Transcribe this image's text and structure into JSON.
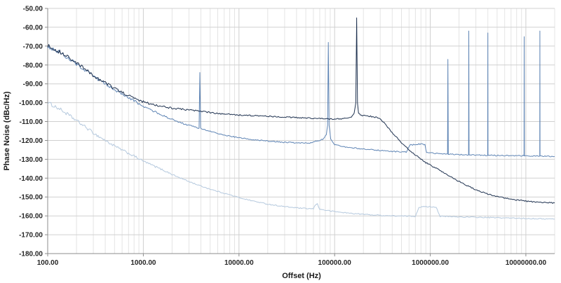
{
  "colors": {
    "background": "#ffffff",
    "grid_major": "#d0d0d0",
    "grid_minor": "#e4e4e4",
    "axis": "#8c8c8c",
    "tick_text": "#262626"
  },
  "chart_data": {
    "type": "line",
    "title": "",
    "xlabel": "Offset (Hz)",
    "ylabel": "Phase Noise (dBc/Hz)",
    "x_scale": "log",
    "x_range": [
      100,
      20000000
    ],
    "y_range": [
      -180,
      -50
    ],
    "grid": true,
    "legend": "none",
    "y_ticks": [
      "-50.00",
      "-60.00",
      "-70.00",
      "-80.00",
      "-90.00",
      "-100.00",
      "-110.00",
      "-120.00",
      "-130.00",
      "-140.00",
      "-150.00",
      "-160.00",
      "-170.00",
      "-180.00"
    ],
    "x_ticks": [
      {
        "value": 100,
        "label": "100.00"
      },
      {
        "value": 1000,
        "label": "1000.00"
      },
      {
        "value": 10000,
        "label": "10000.00"
      },
      {
        "value": 100000,
        "label": "100000.00"
      },
      {
        "value": 1000000,
        "label": "1000000.00"
      },
      {
        "value": 10000000,
        "label": "10000000.00"
      }
    ],
    "series": [
      {
        "id": "trace-light-blue",
        "color": "#b5c9de",
        "noise_db": 1.0,
        "points": [
          [
            100,
            -100
          ],
          [
            130,
            -103
          ],
          [
            160,
            -106
          ],
          [
            200,
            -109.5
          ],
          [
            250,
            -113
          ],
          [
            320,
            -117
          ],
          [
            400,
            -120
          ],
          [
            500,
            -123
          ],
          [
            650,
            -126
          ],
          [
            800,
            -128.3
          ],
          [
            1000,
            -131
          ],
          [
            1300,
            -133.6
          ],
          [
            1700,
            -136.3
          ],
          [
            2200,
            -139
          ],
          [
            3000,
            -141.8
          ],
          [
            4000,
            -144.2
          ],
          [
            5500,
            -146.5
          ],
          [
            7500,
            -148.4
          ],
          [
            10000,
            -150.3
          ],
          [
            14000,
            -152.1
          ],
          [
            20000,
            -153.8
          ],
          [
            30000,
            -155.1
          ],
          [
            45000,
            -156
          ],
          [
            60000,
            -156.3
          ],
          [
            63000,
            -154.1
          ],
          [
            66000,
            -153.7
          ],
          [
            70000,
            -156.5
          ],
          [
            90000,
            -157.4
          ],
          [
            120000,
            -158.2
          ],
          [
            170000,
            -158.9
          ],
          [
            250000,
            -159.5
          ],
          [
            350000,
            -159.9
          ],
          [
            500000,
            -160.1
          ],
          [
            700000,
            -160.2
          ],
          [
            760000,
            -155.4
          ],
          [
            900000,
            -155.1
          ],
          [
            1150000,
            -155.3
          ],
          [
            1270000,
            -160.3
          ],
          [
            1600000,
            -160.4
          ],
          [
            2200000,
            -160.6
          ],
          [
            3200000,
            -160.8
          ],
          [
            5000000,
            -161
          ],
          [
            7500000,
            -161.2
          ],
          [
            11000000,
            -161.4
          ],
          [
            16000000,
            -161.6
          ],
          [
            20000000,
            -161.7
          ]
        ]
      },
      {
        "id": "trace-medium-blue",
        "color": "#5f85b5",
        "noise_db": 1.1,
        "points": [
          [
            100,
            -70.2
          ],
          [
            130,
            -73
          ],
          [
            160,
            -76
          ],
          [
            200,
            -79.5
          ],
          [
            250,
            -83
          ],
          [
            320,
            -87
          ],
          [
            400,
            -90
          ],
          [
            500,
            -93
          ],
          [
            650,
            -96.5
          ],
          [
            800,
            -99
          ],
          [
            1000,
            -102
          ],
          [
            1300,
            -104.6
          ],
          [
            1700,
            -107.3
          ],
          [
            2200,
            -109.8
          ],
          [
            3000,
            -112
          ],
          [
            3700,
            -113.3
          ],
          [
            3830,
            -113.5
          ],
          [
            3900,
            -84
          ],
          [
            3970,
            -113.7
          ],
          [
            5000,
            -115.2
          ],
          [
            6500,
            -116.8
          ],
          [
            9000,
            -118.2
          ],
          [
            13000,
            -119.4
          ],
          [
            20000,
            -120.4
          ],
          [
            30000,
            -121
          ],
          [
            45000,
            -121.4
          ],
          [
            55000,
            -121.3
          ],
          [
            65000,
            -120.2
          ],
          [
            75000,
            -119.5
          ],
          [
            82000,
            -117
          ],
          [
            84500,
            -112
          ],
          [
            86000,
            -68
          ],
          [
            87600,
            -112
          ],
          [
            91000,
            -119.5
          ],
          [
            100000,
            -122.2
          ],
          [
            130000,
            -123.4
          ],
          [
            180000,
            -124.3
          ],
          [
            250000,
            -125
          ],
          [
            350000,
            -125.6
          ],
          [
            470000,
            -126
          ],
          [
            560000,
            -126.2
          ],
          [
            620000,
            -122.4
          ],
          [
            780000,
            -121.9
          ],
          [
            880000,
            -122.2
          ],
          [
            915000,
            -126.4
          ],
          [
            1100000,
            -126.9
          ],
          [
            1350000,
            -127.1
          ],
          [
            1515000,
            -127.2
          ],
          [
            1530000,
            -77
          ],
          [
            1545000,
            -127.3
          ],
          [
            1900000,
            -127.5
          ],
          [
            2515000,
            -127.6
          ],
          [
            2530000,
            -62
          ],
          [
            2545000,
            -127.6
          ],
          [
            3200000,
            -127.8
          ],
          [
            3985000,
            -127.9
          ],
          [
            4000000,
            -63
          ],
          [
            4015000,
            -127.9
          ],
          [
            5500000,
            -128
          ],
          [
            8000000,
            -128.1
          ],
          [
            9560000,
            -128.1
          ],
          [
            9600000,
            -65
          ],
          [
            9640000,
            -128.2
          ],
          [
            12000000,
            -128.3
          ],
          [
            13950000,
            -128.3
          ],
          [
            14000000,
            -62
          ],
          [
            14050000,
            -128.3
          ],
          [
            17000000,
            -128.4
          ],
          [
            20000000,
            -128.5
          ]
        ]
      },
      {
        "id": "trace-dark-navy",
        "color": "#1f3250",
        "noise_db": 1.2,
        "points": [
          [
            100,
            -69.8
          ],
          [
            130,
            -72.6
          ],
          [
            160,
            -75.6
          ],
          [
            200,
            -79
          ],
          [
            250,
            -82.5
          ],
          [
            320,
            -86.5
          ],
          [
            400,
            -89.5
          ],
          [
            500,
            -92.5
          ],
          [
            650,
            -95.5
          ],
          [
            800,
            -97.6
          ],
          [
            1000,
            -99.5
          ],
          [
            1300,
            -101
          ],
          [
            1700,
            -102.3
          ],
          [
            2200,
            -103.1
          ],
          [
            3000,
            -103.9
          ],
          [
            4000,
            -104.5
          ],
          [
            6000,
            -105.8
          ],
          [
            9000,
            -106.4
          ],
          [
            13000,
            -106.8
          ],
          [
            20000,
            -107.2
          ],
          [
            30000,
            -107.6
          ],
          [
            45000,
            -108
          ],
          [
            70000,
            -108.4
          ],
          [
            100000,
            -108.7
          ],
          [
            130000,
            -108.4
          ],
          [
            150000,
            -107.6
          ],
          [
            160000,
            -105.5
          ],
          [
            166500,
            -100
          ],
          [
            170000,
            -55
          ],
          [
            173500,
            -100
          ],
          [
            178000,
            -105.8
          ],
          [
            190000,
            -106.6
          ],
          [
            215000,
            -107
          ],
          [
            250000,
            -107.4
          ],
          [
            285000,
            -108
          ],
          [
            320000,
            -110
          ],
          [
            360000,
            -113
          ],
          [
            420000,
            -117
          ],
          [
            500000,
            -121.3
          ],
          [
            600000,
            -125
          ],
          [
            720000,
            -128.2
          ],
          [
            900000,
            -131.8
          ],
          [
            1100000,
            -134.2
          ],
          [
            1400000,
            -137.2
          ],
          [
            1800000,
            -140.5
          ],
          [
            2300000,
            -143.4
          ],
          [
            3000000,
            -146.2
          ],
          [
            4000000,
            -148.4
          ],
          [
            5500000,
            -150.2
          ],
          [
            7500000,
            -151.4
          ],
          [
            10000000,
            -152.2
          ],
          [
            14000000,
            -152.8
          ],
          [
            20000000,
            -153.2
          ]
        ]
      }
    ]
  }
}
